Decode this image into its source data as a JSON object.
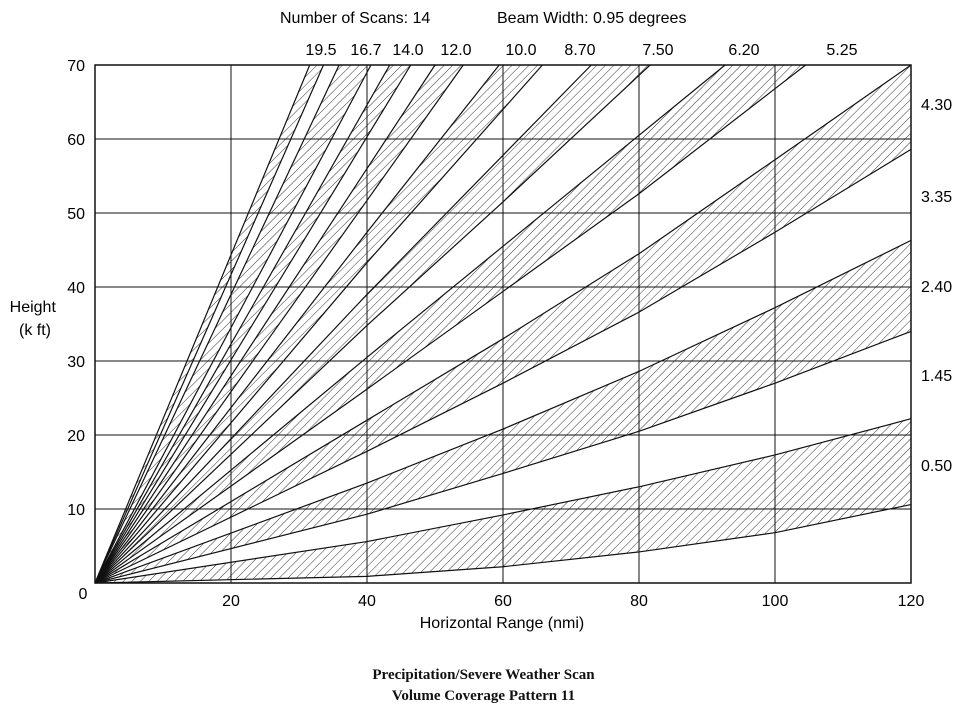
{
  "header": {
    "scans_label": "Number of Scans: 14",
    "beam_label": "Beam Width: 0.95 degrees"
  },
  "caption": {
    "line1": "Precipitation/Severe Weather Scan",
    "line2": "Volume Coverage Pattern 11"
  },
  "chart_data": {
    "type": "line",
    "xlabel": "Horizontal Range (nmi)",
    "ylabel": "Height\n(k ft)",
    "xlim": [
      0,
      120
    ],
    "ylim": [
      0,
      70
    ],
    "x_ticks": [
      0,
      20,
      40,
      60,
      80,
      100,
      120
    ],
    "y_ticks": [
      0,
      10,
      20,
      30,
      40,
      50,
      60,
      70
    ],
    "grid": true,
    "beam_width_deg": 0.95,
    "shading": "hatched beam bands",
    "elevation_angle_labels": {
      "top": [
        "19.5",
        "16.7",
        "14.0",
        "12.0",
        "10.0",
        "8.70",
        "7.50",
        "6.20",
        "5.25"
      ],
      "right": [
        "4.30",
        "3.35",
        "2.40",
        "1.45",
        "0.50"
      ]
    },
    "series": [
      {
        "values": [
          [
            0,
            0
          ],
          [
            40,
            0.9
          ],
          [
            60,
            2.2
          ],
          [
            80,
            4.2
          ],
          [
            100,
            6.8
          ],
          [
            120,
            10.6
          ]
        ]
      },
      {
        "values": [
          [
            0,
            0
          ],
          [
            40,
            5.6
          ],
          [
            60,
            9.2
          ],
          [
            80,
            13
          ],
          [
            100,
            17.3
          ],
          [
            120,
            22.2
          ]
        ]
      },
      {
        "values": [
          [
            0,
            0
          ],
          [
            40,
            9.3
          ],
          [
            60,
            14.8
          ],
          [
            80,
            20.5
          ],
          [
            100,
            27.0
          ],
          [
            120,
            34.0
          ]
        ]
      },
      {
        "values": [
          [
            0,
            0
          ],
          [
            40,
            13.5
          ],
          [
            60,
            20.8
          ],
          [
            80,
            28.6
          ],
          [
            100,
            37.2
          ],
          [
            120,
            46.3
          ]
        ]
      },
      {
        "values": [
          [
            0,
            0
          ],
          [
            40,
            17.8
          ],
          [
            60,
            27.0
          ],
          [
            80,
            36.6
          ],
          [
            100,
            47.4
          ],
          [
            120,
            58.6
          ]
        ]
      },
      {
        "values": [
          [
            0,
            0
          ],
          [
            40,
            22.0
          ],
          [
            60,
            33.0
          ],
          [
            80,
            44.5
          ],
          [
            100,
            57.2
          ],
          [
            120,
            70.2
          ]
        ]
      },
      {
        "values": [
          [
            0,
            0
          ],
          [
            40,
            26.2
          ],
          [
            60,
            39.4
          ],
          [
            80,
            52.6
          ],
          [
            100,
            66.8
          ]
        ]
      },
      {
        "values": [
          [
            0,
            0
          ],
          [
            40,
            30.5
          ],
          [
            60,
            45.5
          ],
          [
            80,
            60.5
          ]
        ]
      },
      {
        "values": [
          [
            0,
            0
          ],
          [
            40,
            34.8
          ],
          [
            60,
            51.5
          ],
          [
            80,
            68.6
          ]
        ]
      },
      {
        "values": [
          [
            0,
            0
          ],
          [
            40,
            39.0
          ],
          [
            60,
            57.8
          ]
        ]
      },
      {
        "values": [
          [
            0,
            0
          ],
          [
            40,
            43.3
          ],
          [
            60,
            64.0
          ]
        ]
      },
      {
        "values": [
          [
            0,
            0
          ],
          [
            40,
            47.4
          ],
          [
            56,
            66.0
          ]
        ]
      },
      {
        "values": [
          [
            0,
            0
          ],
          [
            40,
            51.7
          ]
        ]
      },
      {
        "values": [
          [
            0,
            0
          ],
          [
            40,
            56.0
          ]
        ]
      },
      {
        "values": [
          [
            0,
            0
          ],
          [
            40,
            60.3
          ]
        ]
      },
      {
        "values": [
          [
            0,
            0
          ],
          [
            40,
            64.6
          ]
        ]
      },
      {
        "values": [
          [
            0,
            0
          ],
          [
            40,
            69.0
          ]
        ]
      },
      {
        "values": [
          [
            0,
            0
          ],
          [
            30,
            58.5
          ]
        ]
      },
      {
        "values": [
          [
            0,
            0
          ],
          [
            30,
            62.5
          ]
        ]
      },
      {
        "values": [
          [
            0,
            0
          ],
          [
            30,
            66.5
          ]
        ]
      }
    ]
  }
}
